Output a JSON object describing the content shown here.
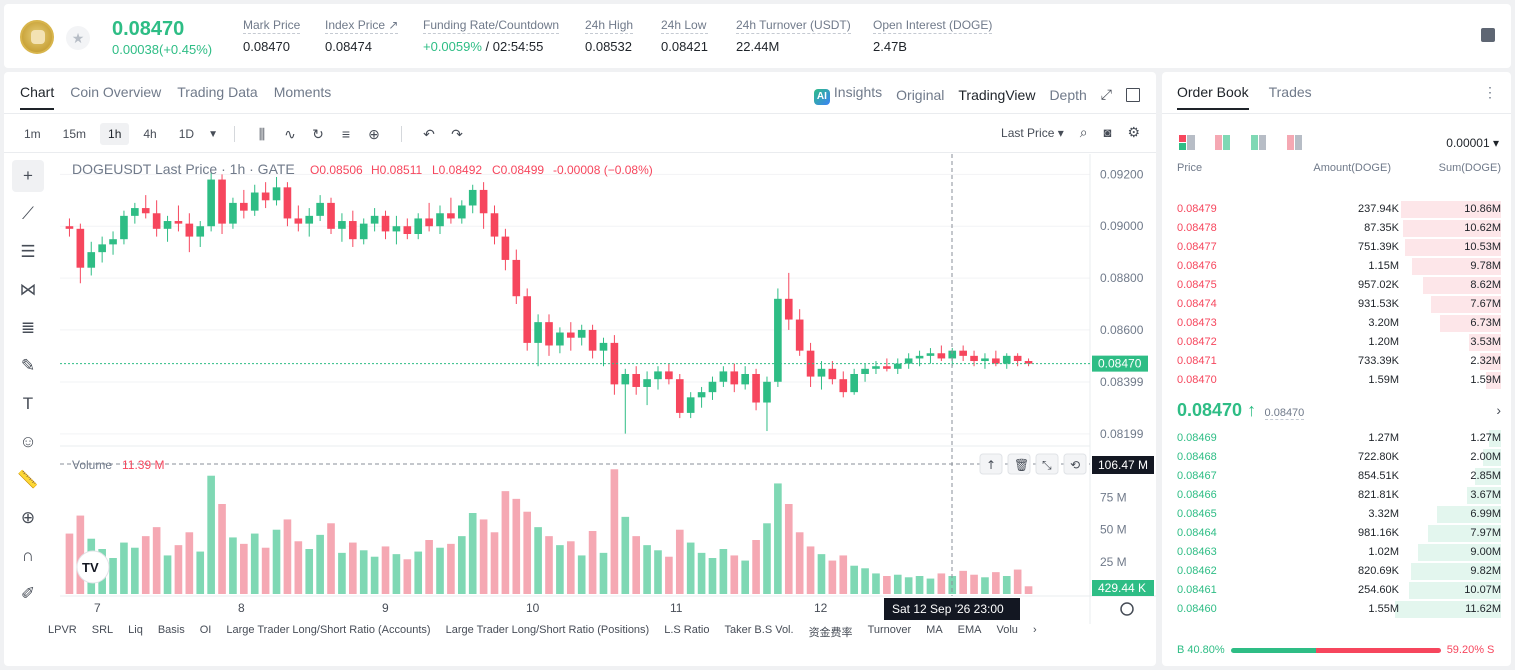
{
  "ticker": {
    "last_price": "0.08470",
    "change": "0.00038(+0.45%)",
    "stats": [
      {
        "label": "Mark Price",
        "value": "0.08470"
      },
      {
        "label": "Index Price ↗",
        "value": "0.08474"
      },
      {
        "label": "Funding Rate/Countdown",
        "value_green": "+0.0059%",
        "value": " / 02:54:55"
      },
      {
        "label": "24h High",
        "value": "0.08532"
      },
      {
        "label": "24h Low",
        "value": "0.08421"
      },
      {
        "label": "24h Turnover (USDT)",
        "value": "22.44M"
      },
      {
        "label": "Open Interest (DOGE)",
        "value": "2.47B"
      }
    ]
  },
  "chart_tabs": {
    "left": [
      "Chart",
      "Coin Overview",
      "Trading Data",
      "Moments"
    ],
    "right": [
      "Insights",
      "Original",
      "TradingView",
      "Depth"
    ],
    "ai_badge": "AI"
  },
  "timeframes": [
    "1m",
    "15m",
    "1h",
    "4h",
    "1D"
  ],
  "price_type": "Last Price ▾",
  "chart_header": {
    "symbol": "DOGEUSDT Last Price · 1h · GATE",
    "o": "O0.08506",
    "h": "H0.08511",
    "l": "L0.08492",
    "c": "C0.08499",
    "chg": "-0.00008 (−0.08%)",
    "volume_label": "Volume",
    "volume_value": "11.39 M"
  },
  "chart_data": {
    "type": "candlestick",
    "title": "DOGEUSDT Last Price · 1h · GATE",
    "y_ticks": [
      "0.09200",
      "0.09000",
      "0.08800",
      "0.08600",
      "0.08399",
      "0.08199"
    ],
    "x_ticks": [
      "7",
      "8",
      "9",
      "10",
      "11",
      "12"
    ],
    "vol_ticks": [
      "75 M",
      "50 M",
      "25 M"
    ],
    "last_price_label": "0.08470",
    "volume_marker": "106.47 M",
    "volume_last": "429.44 K",
    "crosshair_time": "Sat 12 Sep '26   23:00",
    "candles": [
      {
        "o": 0.09,
        "h": 0.0903,
        "l": 0.0896,
        "c": 0.0899,
        "v": 47
      },
      {
        "o": 0.0899,
        "h": 0.0901,
        "l": 0.0878,
        "c": 0.0884,
        "v": 61
      },
      {
        "o": 0.0884,
        "h": 0.0894,
        "l": 0.0881,
        "c": 0.089,
        "v": 43
      },
      {
        "o": 0.089,
        "h": 0.0896,
        "l": 0.0886,
        "c": 0.0893,
        "v": 35
      },
      {
        "o": 0.0893,
        "h": 0.0898,
        "l": 0.0889,
        "c": 0.0895,
        "v": 28
      },
      {
        "o": 0.0895,
        "h": 0.0906,
        "l": 0.0893,
        "c": 0.0904,
        "v": 40
      },
      {
        "o": 0.0904,
        "h": 0.0909,
        "l": 0.0901,
        "c": 0.0907,
        "v": 36
      },
      {
        "o": 0.0907,
        "h": 0.0912,
        "l": 0.0903,
        "c": 0.0905,
        "v": 45
      },
      {
        "o": 0.0905,
        "h": 0.091,
        "l": 0.0896,
        "c": 0.0899,
        "v": 52
      },
      {
        "o": 0.0899,
        "h": 0.0904,
        "l": 0.0894,
        "c": 0.0902,
        "v": 30
      },
      {
        "o": 0.0902,
        "h": 0.0908,
        "l": 0.0898,
        "c": 0.0901,
        "v": 38
      },
      {
        "o": 0.0901,
        "h": 0.0905,
        "l": 0.089,
        "c": 0.0896,
        "v": 48
      },
      {
        "o": 0.0896,
        "h": 0.0902,
        "l": 0.0892,
        "c": 0.09,
        "v": 33
      },
      {
        "o": 0.09,
        "h": 0.0921,
        "l": 0.0898,
        "c": 0.0918,
        "v": 92
      },
      {
        "o": 0.0918,
        "h": 0.092,
        "l": 0.0897,
        "c": 0.0901,
        "v": 70
      },
      {
        "o": 0.0901,
        "h": 0.0911,
        "l": 0.0899,
        "c": 0.0909,
        "v": 44
      },
      {
        "o": 0.0909,
        "h": 0.0914,
        "l": 0.0903,
        "c": 0.0906,
        "v": 39
      },
      {
        "o": 0.0906,
        "h": 0.0916,
        "l": 0.0904,
        "c": 0.0913,
        "v": 47
      },
      {
        "o": 0.0913,
        "h": 0.0917,
        "l": 0.0907,
        "c": 0.091,
        "v": 36
      },
      {
        "o": 0.091,
        "h": 0.0919,
        "l": 0.0908,
        "c": 0.0915,
        "v": 50
      },
      {
        "o": 0.0915,
        "h": 0.0917,
        "l": 0.09,
        "c": 0.0903,
        "v": 58
      },
      {
        "o": 0.0903,
        "h": 0.0908,
        "l": 0.0898,
        "c": 0.0901,
        "v": 41
      },
      {
        "o": 0.0901,
        "h": 0.0907,
        "l": 0.0896,
        "c": 0.0904,
        "v": 35
      },
      {
        "o": 0.0904,
        "h": 0.0912,
        "l": 0.0902,
        "c": 0.0909,
        "v": 46
      },
      {
        "o": 0.0909,
        "h": 0.0911,
        "l": 0.0897,
        "c": 0.0899,
        "v": 55
      },
      {
        "o": 0.0899,
        "h": 0.0905,
        "l": 0.0894,
        "c": 0.0902,
        "v": 32
      },
      {
        "o": 0.0902,
        "h": 0.0906,
        "l": 0.0892,
        "c": 0.0895,
        "v": 40
      },
      {
        "o": 0.0895,
        "h": 0.0903,
        "l": 0.0893,
        "c": 0.0901,
        "v": 34
      },
      {
        "o": 0.0901,
        "h": 0.0907,
        "l": 0.0898,
        "c": 0.0904,
        "v": 29
      },
      {
        "o": 0.0904,
        "h": 0.0906,
        "l": 0.0895,
        "c": 0.0898,
        "v": 37
      },
      {
        "o": 0.0898,
        "h": 0.0904,
        "l": 0.0893,
        "c": 0.09,
        "v": 31
      },
      {
        "o": 0.09,
        "h": 0.0903,
        "l": 0.0895,
        "c": 0.0897,
        "v": 27
      },
      {
        "o": 0.0897,
        "h": 0.0905,
        "l": 0.0895,
        "c": 0.0903,
        "v": 33
      },
      {
        "o": 0.0903,
        "h": 0.0909,
        "l": 0.0898,
        "c": 0.09,
        "v": 42
      },
      {
        "o": 0.09,
        "h": 0.0908,
        "l": 0.0897,
        "c": 0.0905,
        "v": 36
      },
      {
        "o": 0.0905,
        "h": 0.0911,
        "l": 0.0901,
        "c": 0.0903,
        "v": 39
      },
      {
        "o": 0.0903,
        "h": 0.091,
        "l": 0.0901,
        "c": 0.0908,
        "v": 45
      },
      {
        "o": 0.0908,
        "h": 0.0916,
        "l": 0.0905,
        "c": 0.0914,
        "v": 63
      },
      {
        "o": 0.0914,
        "h": 0.0917,
        "l": 0.0899,
        "c": 0.0905,
        "v": 58
      },
      {
        "o": 0.0905,
        "h": 0.0908,
        "l": 0.0893,
        "c": 0.0896,
        "v": 48
      },
      {
        "o": 0.0896,
        "h": 0.0899,
        "l": 0.0883,
        "c": 0.0887,
        "v": 80
      },
      {
        "o": 0.0887,
        "h": 0.0891,
        "l": 0.087,
        "c": 0.0873,
        "v": 74
      },
      {
        "o": 0.0873,
        "h": 0.0876,
        "l": 0.0852,
        "c": 0.0855,
        "v": 64
      },
      {
        "o": 0.0855,
        "h": 0.0866,
        "l": 0.0846,
        "c": 0.0863,
        "v": 52
      },
      {
        "o": 0.0863,
        "h": 0.0866,
        "l": 0.085,
        "c": 0.0854,
        "v": 45
      },
      {
        "o": 0.0854,
        "h": 0.0861,
        "l": 0.0851,
        "c": 0.0859,
        "v": 38
      },
      {
        "o": 0.0859,
        "h": 0.0863,
        "l": 0.0852,
        "c": 0.0857,
        "v": 41
      },
      {
        "o": 0.0857,
        "h": 0.0862,
        "l": 0.0854,
        "c": 0.086,
        "v": 30
      },
      {
        "o": 0.086,
        "h": 0.0862,
        "l": 0.0849,
        "c": 0.0852,
        "v": 49
      },
      {
        "o": 0.0852,
        "h": 0.0857,
        "l": 0.0846,
        "c": 0.0855,
        "v": 32
      },
      {
        "o": 0.0855,
        "h": 0.0858,
        "l": 0.0835,
        "c": 0.0839,
        "v": 97
      },
      {
        "o": 0.0839,
        "h": 0.0845,
        "l": 0.082,
        "c": 0.0843,
        "v": 60
      },
      {
        "o": 0.0843,
        "h": 0.0846,
        "l": 0.0835,
        "c": 0.0838,
        "v": 45
      },
      {
        "o": 0.0838,
        "h": 0.0844,
        "l": 0.0831,
        "c": 0.0841,
        "v": 38
      },
      {
        "o": 0.0841,
        "h": 0.0846,
        "l": 0.0837,
        "c": 0.0844,
        "v": 34
      },
      {
        "o": 0.0844,
        "h": 0.0847,
        "l": 0.0839,
        "c": 0.0841,
        "v": 29
      },
      {
        "o": 0.0841,
        "h": 0.0843,
        "l": 0.0826,
        "c": 0.0828,
        "v": 50
      },
      {
        "o": 0.0828,
        "h": 0.0836,
        "l": 0.0826,
        "c": 0.0834,
        "v": 40
      },
      {
        "o": 0.0834,
        "h": 0.0838,
        "l": 0.083,
        "c": 0.0836,
        "v": 32
      },
      {
        "o": 0.0836,
        "h": 0.0842,
        "l": 0.0833,
        "c": 0.084,
        "v": 28
      },
      {
        "o": 0.084,
        "h": 0.0846,
        "l": 0.0838,
        "c": 0.0844,
        "v": 35
      },
      {
        "o": 0.0844,
        "h": 0.0847,
        "l": 0.0836,
        "c": 0.0839,
        "v": 30
      },
      {
        "o": 0.0839,
        "h": 0.0846,
        "l": 0.0837,
        "c": 0.0843,
        "v": 26
      },
      {
        "o": 0.0843,
        "h": 0.0845,
        "l": 0.0829,
        "c": 0.0832,
        "v": 42
      },
      {
        "o": 0.0832,
        "h": 0.0842,
        "l": 0.0821,
        "c": 0.084,
        "v": 55
      },
      {
        "o": 0.084,
        "h": 0.0876,
        "l": 0.0838,
        "c": 0.0872,
        "v": 86
      },
      {
        "o": 0.0872,
        "h": 0.0882,
        "l": 0.086,
        "c": 0.0864,
        "v": 70
      },
      {
        "o": 0.0864,
        "h": 0.0868,
        "l": 0.085,
        "c": 0.0852,
        "v": 48
      },
      {
        "o": 0.0852,
        "h": 0.0855,
        "l": 0.0838,
        "c": 0.0842,
        "v": 37
      },
      {
        "o": 0.0842,
        "h": 0.0848,
        "l": 0.0837,
        "c": 0.0845,
        "v": 31
      },
      {
        "o": 0.0845,
        "h": 0.0848,
        "l": 0.0839,
        "c": 0.0841,
        "v": 26
      },
      {
        "o": 0.0841,
        "h": 0.0844,
        "l": 0.0834,
        "c": 0.0836,
        "v": 30
      },
      {
        "o": 0.0836,
        "h": 0.0845,
        "l": 0.0835,
        "c": 0.0843,
        "v": 22
      },
      {
        "o": 0.0843,
        "h": 0.0847,
        "l": 0.084,
        "c": 0.0845,
        "v": 20
      },
      {
        "o": 0.0845,
        "h": 0.0848,
        "l": 0.0843,
        "c": 0.0846,
        "v": 16
      },
      {
        "o": 0.0846,
        "h": 0.0849,
        "l": 0.0844,
        "c": 0.0845,
        "v": 14
      },
      {
        "o": 0.0845,
        "h": 0.0849,
        "l": 0.0843,
        "c": 0.0847,
        "v": 15
      },
      {
        "o": 0.0847,
        "h": 0.0851,
        "l": 0.0845,
        "c": 0.0849,
        "v": 13
      },
      {
        "o": 0.0849,
        "h": 0.0852,
        "l": 0.0846,
        "c": 0.085,
        "v": 14
      },
      {
        "o": 0.085,
        "h": 0.0853,
        "l": 0.0847,
        "c": 0.0851,
        "v": 12
      },
      {
        "o": 0.0851,
        "h": 0.0854,
        "l": 0.0848,
        "c": 0.0849,
        "v": 16
      },
      {
        "o": 0.0849,
        "h": 0.0853,
        "l": 0.0846,
        "c": 0.0852,
        "v": 14
      },
      {
        "o": 0.0852,
        "h": 0.0854,
        "l": 0.0848,
        "c": 0.085,
        "v": 18
      },
      {
        "o": 0.085,
        "h": 0.0852,
        "l": 0.0846,
        "c": 0.0848,
        "v": 15
      },
      {
        "o": 0.0848,
        "h": 0.0851,
        "l": 0.0845,
        "c": 0.0849,
        "v": 13
      },
      {
        "o": 0.0849,
        "h": 0.0852,
        "l": 0.0846,
        "c": 0.0847,
        "v": 17
      },
      {
        "o": 0.0847,
        "h": 0.0851,
        "l": 0.0845,
        "c": 0.085,
        "v": 14
      },
      {
        "o": 0.085,
        "h": 0.0851,
        "l": 0.0846,
        "c": 0.0848,
        "v": 19
      },
      {
        "o": 0.0848,
        "h": 0.0849,
        "l": 0.0846,
        "c": 0.0847,
        "v": 6
      }
    ]
  },
  "bottom_indicators": [
    "LPVR",
    "SRL",
    "Liq",
    "Basis",
    "OI",
    "Large Trader Long/Short Ratio (Accounts)",
    "Large Trader Long/Short Ratio (Positions)",
    "L.S Ratio",
    "Taker B.S Vol.",
    "资金费率",
    "Turnover",
    "MA",
    "EMA",
    "Volu"
  ],
  "orderbook": {
    "tabs": [
      "Order Book",
      "Trades"
    ],
    "precision": "0.00001 ▾",
    "headers": [
      "Price",
      "Amount(DOGE)",
      "Sum(DOGE)"
    ],
    "asks": [
      {
        "price": "0.08479",
        "amount": "237.94K",
        "sum": "10.86M",
        "depth": 0.94
      },
      {
        "price": "0.08478",
        "amount": "87.35K",
        "sum": "10.62M",
        "depth": 0.92
      },
      {
        "price": "0.08477",
        "amount": "751.39K",
        "sum": "10.53M",
        "depth": 0.91
      },
      {
        "price": "0.08476",
        "amount": "1.15M",
        "sum": "9.78M",
        "depth": 0.84
      },
      {
        "price": "0.08475",
        "amount": "957.02K",
        "sum": "8.62M",
        "depth": 0.74
      },
      {
        "price": "0.08474",
        "amount": "931.53K",
        "sum": "7.67M",
        "depth": 0.66
      },
      {
        "price": "0.08473",
        "amount": "3.20M",
        "sum": "6.73M",
        "depth": 0.58
      },
      {
        "price": "0.08472",
        "amount": "1.20M",
        "sum": "3.53M",
        "depth": 0.3
      },
      {
        "price": "0.08471",
        "amount": "733.39K",
        "sum": "2.32M",
        "depth": 0.2
      },
      {
        "price": "0.08470",
        "amount": "1.59M",
        "sum": "1.59M",
        "depth": 0.14
      }
    ],
    "mid_price": "0.08470 ↑",
    "mark_price": "0.08470",
    "bids": [
      {
        "price": "0.08469",
        "amount": "1.27M",
        "sum": "1.27M",
        "depth": 0.11
      },
      {
        "price": "0.08468",
        "amount": "722.80K",
        "sum": "2.00M",
        "depth": 0.17
      },
      {
        "price": "0.08467",
        "amount": "854.51K",
        "sum": "2.85M",
        "depth": 0.25
      },
      {
        "price": "0.08466",
        "amount": "821.81K",
        "sum": "3.67M",
        "depth": 0.32
      },
      {
        "price": "0.08465",
        "amount": "3.32M",
        "sum": "6.99M",
        "depth": 0.6
      },
      {
        "price": "0.08464",
        "amount": "981.16K",
        "sum": "7.97M",
        "depth": 0.69
      },
      {
        "price": "0.08463",
        "amount": "1.02M",
        "sum": "9.00M",
        "depth": 0.78
      },
      {
        "price": "0.08462",
        "amount": "820.69K",
        "sum": "9.82M",
        "depth": 0.85
      },
      {
        "price": "0.08461",
        "amount": "254.60K",
        "sum": "10.07M",
        "depth": 0.87
      },
      {
        "price": "0.08460",
        "amount": "1.55M",
        "sum": "11.62M",
        "depth": 1.0
      }
    ],
    "buy_ratio": "B 40.80%",
    "sell_ratio": "59.20% S",
    "buy_fraction": 0.408
  },
  "colors": {
    "up": "#2ebd85",
    "down": "#f6465d",
    "up_soft": "#7fd8b4",
    "down_soft": "#f5a8b3"
  }
}
